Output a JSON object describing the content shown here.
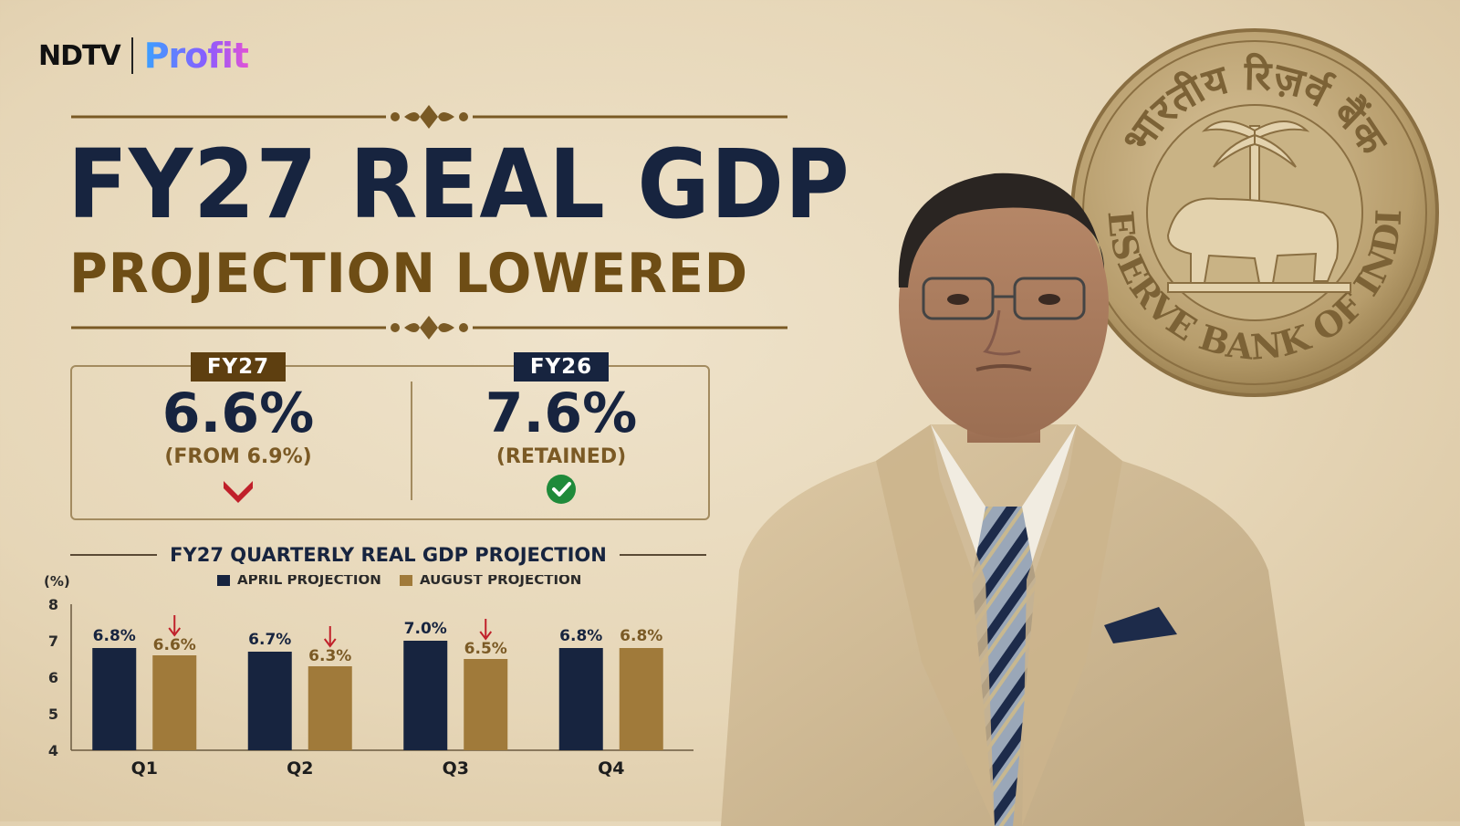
{
  "brand": {
    "part1": "NDTV",
    "part2": "Profit"
  },
  "headline": {
    "title": "FY27 REAL GDP",
    "subtitle": "PROJECTION LOWERED"
  },
  "kpis": [
    {
      "tag": "FY27",
      "value": "6.6%",
      "note": "(FROM 6.9%)",
      "status": "down",
      "status_icon": "down-chevron-icon",
      "tag_color": "#5e3f10"
    },
    {
      "tag": "FY26",
      "value": "7.6%",
      "note": "(RETAINED)",
      "status": "retained",
      "status_icon": "check-circle-icon",
      "tag_color": "#17243f"
    }
  ],
  "seal": {
    "top_text": "भारतीय रिज़र्व बैंक",
    "bottom_text": "RESERVE BANK OF INDIA"
  },
  "colors": {
    "navy": "#17243f",
    "gold": "#a07a3a",
    "brown": "#6e4d15",
    "red": "#c0202a",
    "green": "#1f8a3a"
  },
  "chart_data": {
    "type": "bar",
    "title": "FY27 QUARTERLY REAL GDP PROJECTION",
    "ylabel": "(%)",
    "ylim": [
      4,
      8
    ],
    "yticks": [
      "4",
      "5",
      "6",
      "7",
      "8"
    ],
    "categories": [
      "Q1",
      "Q2",
      "Q3",
      "Q4"
    ],
    "series": [
      {
        "name": "APRIL PROJECTION",
        "values": [
          6.8,
          6.7,
          7.0,
          6.8
        ],
        "labels": [
          "6.8%",
          "6.7%",
          "7.0%",
          "6.8%"
        ],
        "color": "#17243f"
      },
      {
        "name": "AUGUST PROJECTION",
        "values": [
          6.6,
          6.3,
          6.5,
          6.8
        ],
        "labels": [
          "6.6%",
          "6.3%",
          "6.5%",
          "6.8%"
        ],
        "color": "#a07a3a",
        "lowered": [
          true,
          true,
          true,
          false
        ]
      }
    ],
    "legend": "top",
    "grid": false
  }
}
